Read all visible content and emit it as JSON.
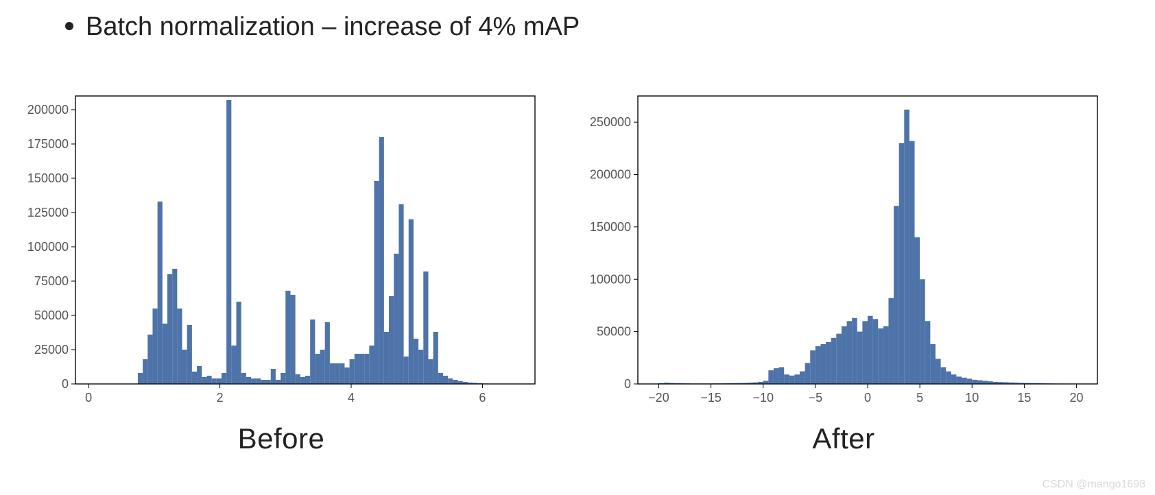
{
  "title": "Batch normalization – increase of 4% mAP",
  "watermark": "CSDN @mango1698",
  "bar_color": "#4e73a9",
  "axis_color": "#000000",
  "tick_color": "#555555",
  "background_color": "#ffffff",
  "tick_fontsize": 18,
  "caption_fontsize": 42,
  "left_chart": {
    "caption": "Before",
    "type": "histogram",
    "xlim": [
      -0.2,
      6.8
    ],
    "ylim": [
      0,
      210000
    ],
    "xticks": [
      0,
      2,
      4,
      6
    ],
    "yticks": [
      0,
      25000,
      50000,
      75000,
      100000,
      125000,
      150000,
      175000,
      200000
    ],
    "bin_start": 0.6,
    "bin_width": 0.075,
    "values": [
      0,
      0,
      8000,
      18000,
      36000,
      55000,
      133000,
      44000,
      80000,
      84000,
      55000,
      25000,
      43000,
      9000,
      13000,
      5000,
      6000,
      4000,
      4000,
      8000,
      207000,
      28000,
      60000,
      8000,
      5000,
      4000,
      4000,
      3000,
      3000,
      11000,
      3000,
      8000,
      68000,
      65000,
      7000,
      5000,
      6000,
      47000,
      22000,
      25000,
      45000,
      15000,
      15000,
      15000,
      12000,
      18000,
      22000,
      22000,
      22000,
      28000,
      148000,
      180000,
      38000,
      64000,
      95000,
      131000,
      20000,
      120000,
      33000,
      25000,
      82000,
      18000,
      38000,
      8000,
      6000,
      4000,
      3000,
      2000,
      1500,
      1000,
      800,
      500,
      300
    ]
  },
  "right_chart": {
    "caption": "After",
    "type": "histogram",
    "xlim": [
      -22,
      22
    ],
    "ylim": [
      0,
      275000
    ],
    "xticks": [
      -20,
      -15,
      -10,
      -5,
      0,
      5,
      10,
      15,
      20
    ],
    "yticks": [
      0,
      50000,
      100000,
      150000,
      200000,
      250000
    ],
    "bin_start": -20,
    "bin_width": 0.5,
    "values": [
      800,
      1200,
      900,
      700,
      600,
      500,
      400,
      400,
      400,
      400,
      500,
      500,
      600,
      700,
      800,
      900,
      1000,
      1200,
      1500,
      2000,
      3000,
      13000,
      15000,
      16000,
      9000,
      8000,
      9000,
      12000,
      20000,
      32000,
      36000,
      38000,
      40000,
      44000,
      48000,
      55000,
      60000,
      63000,
      50000,
      60000,
      65000,
      62000,
      53000,
      55000,
      82000,
      170000,
      230000,
      262000,
      232000,
      140000,
      100000,
      60000,
      38000,
      24000,
      16000,
      12000,
      9000,
      7000,
      6000,
      5000,
      4000,
      3500,
      3000,
      2500,
      2000,
      1800,
      1600,
      1400,
      1200,
      1000,
      900,
      800,
      700,
      600,
      500,
      400,
      350,
      300,
      250,
      200
    ]
  }
}
